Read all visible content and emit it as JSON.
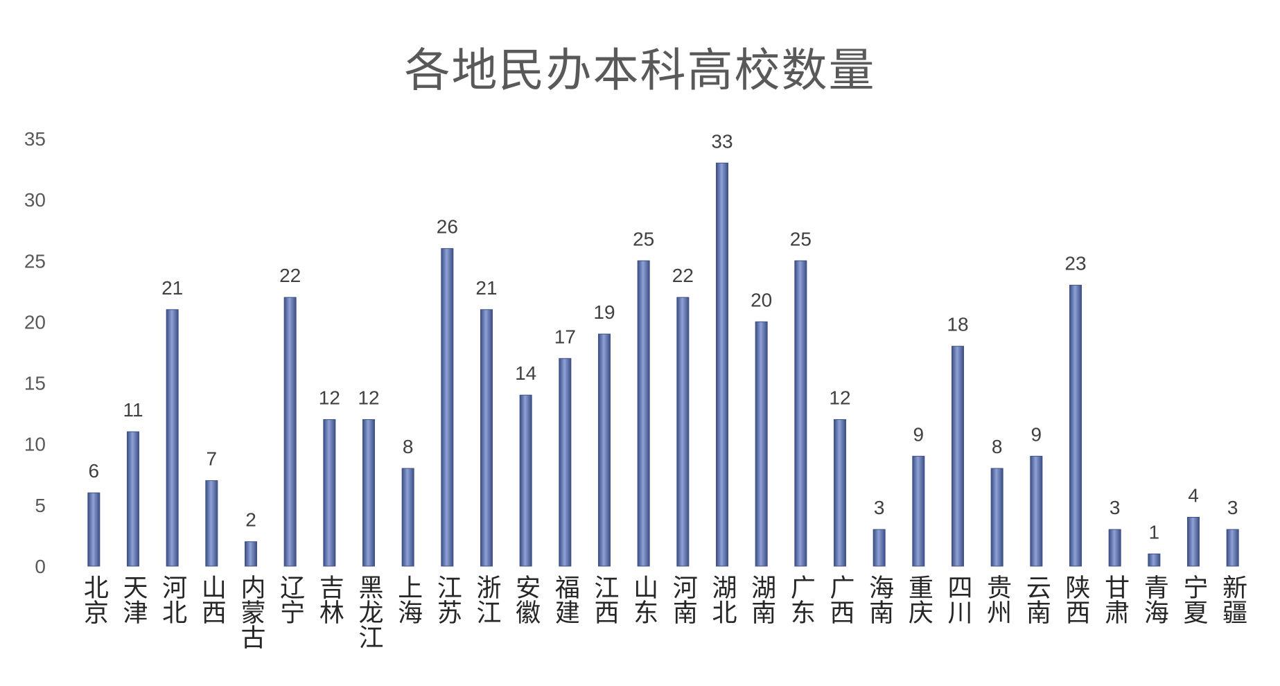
{
  "chart_data": {
    "type": "bar",
    "title": "各地民办本科高校数量",
    "xlabel": "",
    "ylabel": "",
    "ylim": [
      0,
      35
    ],
    "yticks": [
      0,
      5,
      10,
      15,
      20,
      25,
      30,
      35
    ],
    "grid": false,
    "legend": "none",
    "bar_color": "#6f83b9",
    "bar_color_dark": "#3c4f86",
    "categories": [
      "北京",
      "天津",
      "河北",
      "山西",
      "内蒙古",
      "辽宁",
      "吉林",
      "黑龙江",
      "上海",
      "江苏",
      "浙江",
      "安徽",
      "福建",
      "江西",
      "山东",
      "河南",
      "湖北",
      "湖南",
      "广东",
      "广西",
      "海南",
      "重庆",
      "四川",
      "贵州",
      "云南",
      "陕西",
      "甘肃",
      "青海",
      "宁夏",
      "新疆"
    ],
    "values": [
      6,
      11,
      21,
      7,
      2,
      22,
      12,
      12,
      8,
      26,
      21,
      14,
      17,
      19,
      25,
      22,
      33,
      20,
      25,
      12,
      3,
      9,
      18,
      8,
      9,
      23,
      3,
      1,
      4,
      3
    ]
  }
}
